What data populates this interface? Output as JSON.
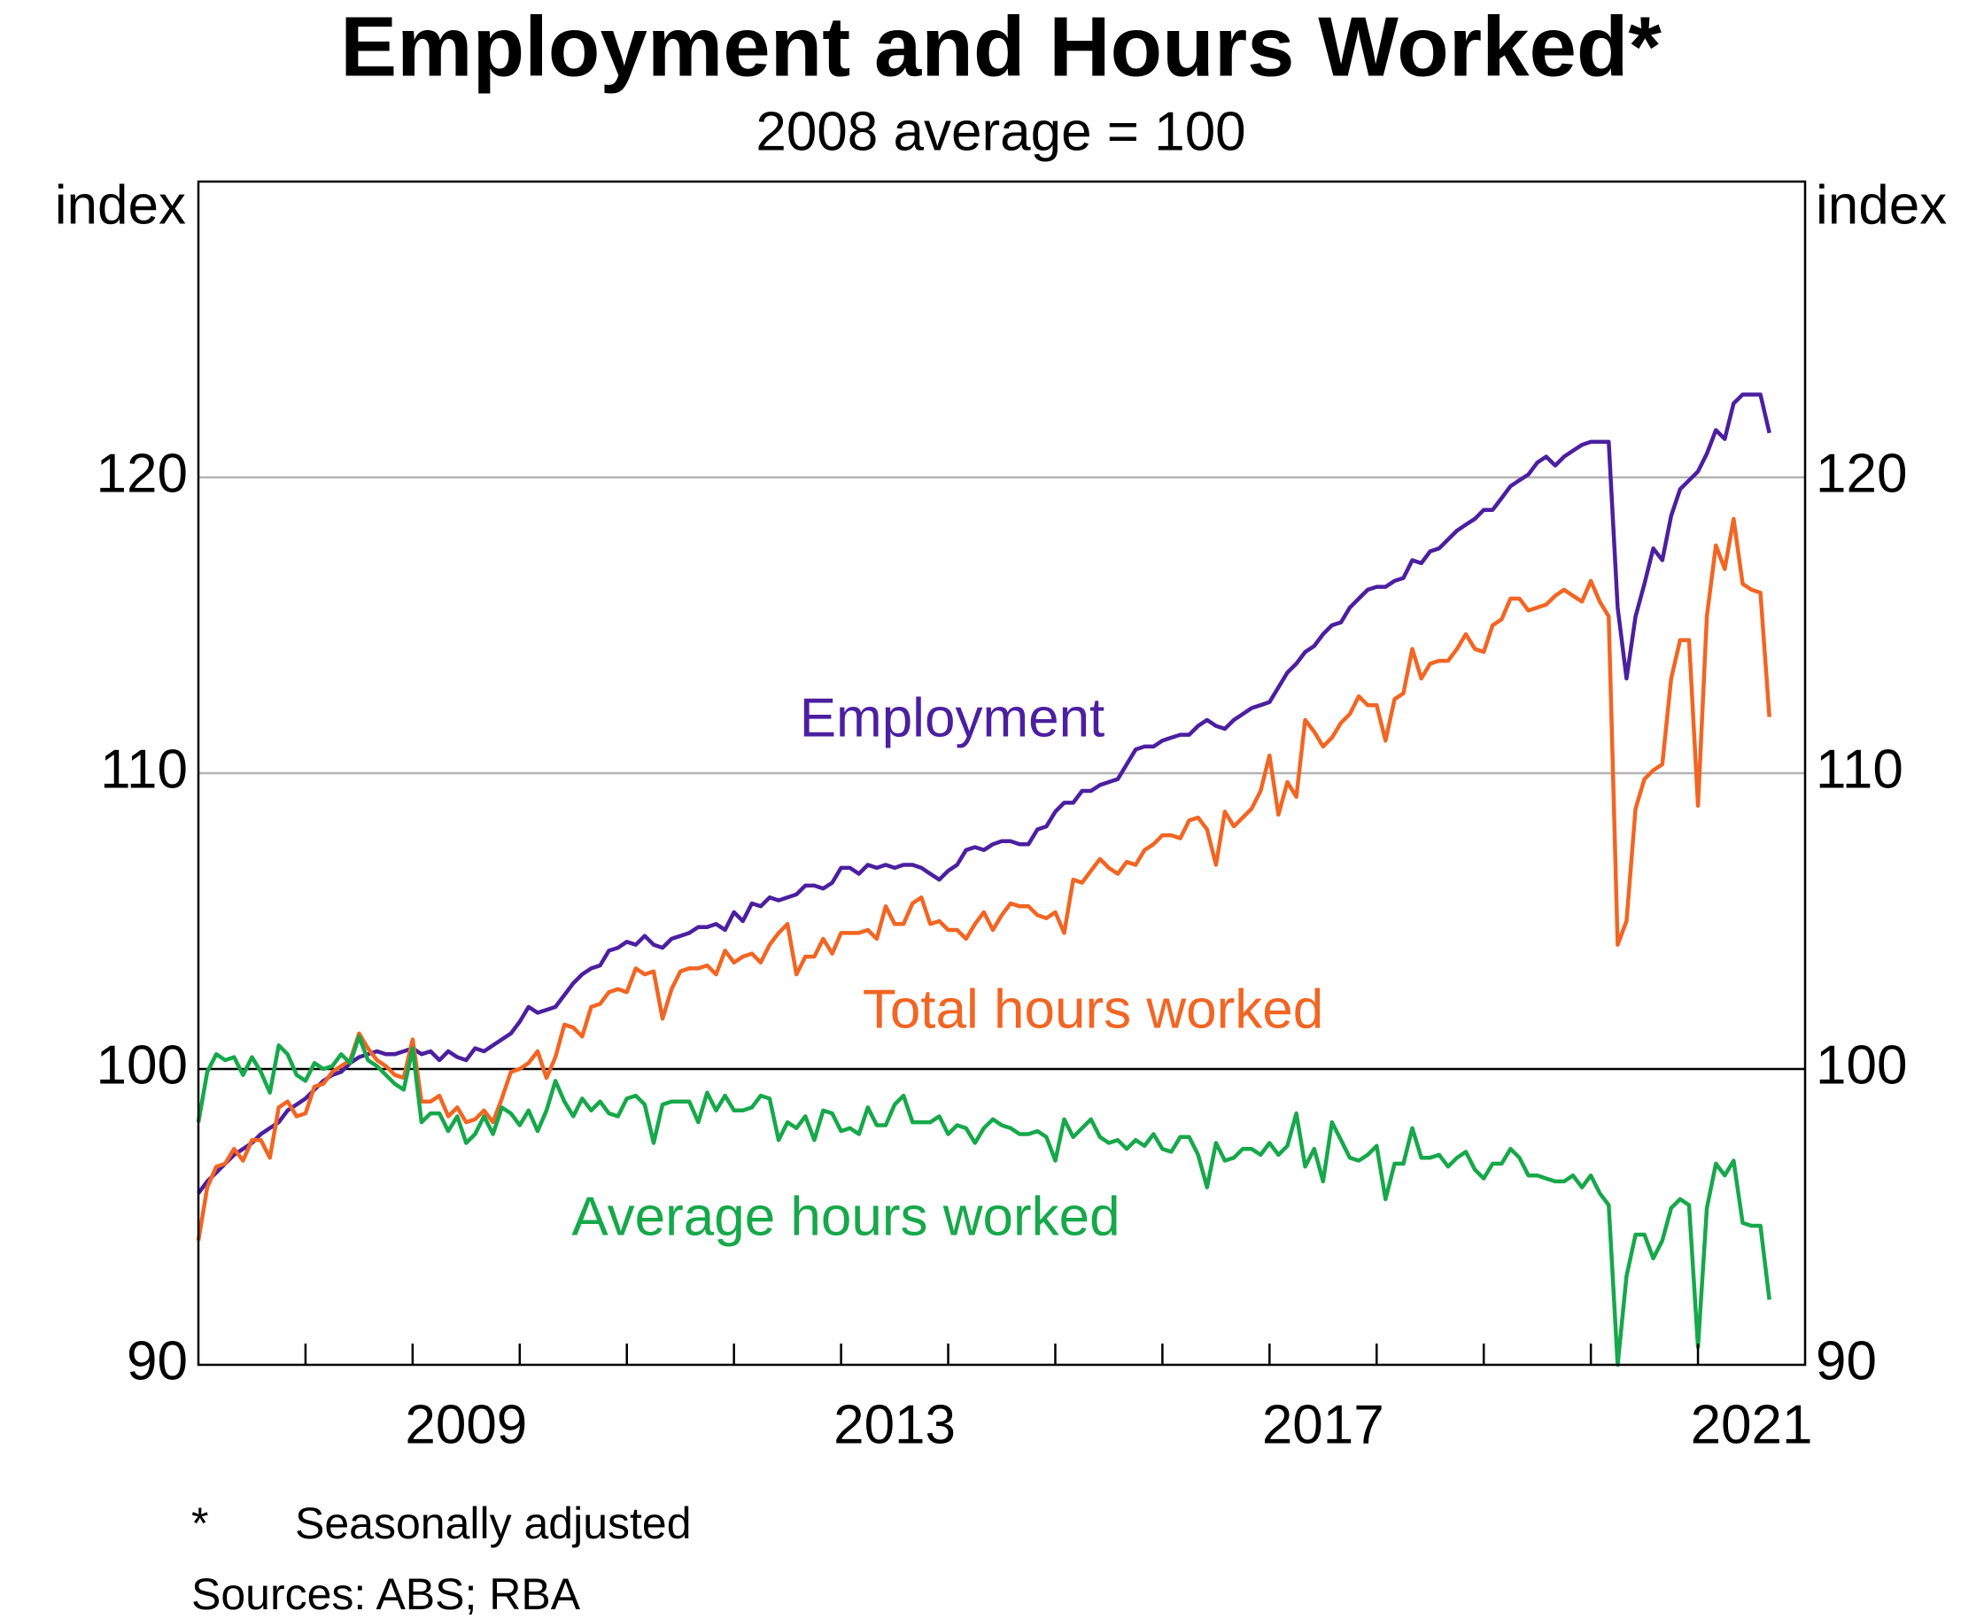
{
  "chart_data": {
    "type": "line",
    "title": "Employment and Hours Worked*",
    "subtitle": "2008 average = 100",
    "ylabel": "index",
    "y2label": "index",
    "footnote_symbol": "*",
    "footnote": "Seasonally adjusted",
    "sources": "Sources: ABS; RBA",
    "xlim": [
      2007,
      2022
    ],
    "xticks": [
      {
        "value": 2009.5,
        "label": "2009"
      },
      {
        "value": 2013.5,
        "label": "2013"
      },
      {
        "value": 2017.5,
        "label": "2017"
      },
      {
        "value": 2021.5,
        "label": "2021"
      }
    ],
    "xminorticks": [
      2008,
      2009,
      2010,
      2011,
      2012,
      2013,
      2014,
      2015,
      2016,
      2017,
      2018,
      2019,
      2020,
      2021
    ],
    "ylim": [
      90,
      130
    ],
    "yticks": [
      90,
      100,
      110,
      120
    ],
    "y2lim": [
      90,
      130
    ],
    "y2ticks": [
      90,
      100,
      110,
      120
    ],
    "grid": true,
    "reference_line": 100,
    "x": [
      2007,
      2007.083,
      2007.167,
      2007.25,
      2007.333,
      2007.417,
      2007.5,
      2007.583,
      2007.667,
      2007.75,
      2007.833,
      2007.917,
      2008,
      2008.083,
      2008.167,
      2008.25,
      2008.333,
      2008.417,
      2008.5,
      2008.583,
      2008.667,
      2008.75,
      2008.833,
      2008.917,
      2009,
      2009.083,
      2009.167,
      2009.25,
      2009.333,
      2009.417,
      2009.5,
      2009.583,
      2009.667,
      2009.75,
      2009.833,
      2009.917,
      2010,
      2010.083,
      2010.167,
      2010.25,
      2010.333,
      2010.417,
      2010.5,
      2010.583,
      2010.667,
      2010.75,
      2010.833,
      2010.917,
      2011,
      2011.083,
      2011.167,
      2011.25,
      2011.333,
      2011.417,
      2011.5,
      2011.583,
      2011.667,
      2011.75,
      2011.833,
      2011.917,
      2012,
      2012.083,
      2012.167,
      2012.25,
      2012.333,
      2012.417,
      2012.5,
      2012.583,
      2012.667,
      2012.75,
      2012.833,
      2012.917,
      2013,
      2013.083,
      2013.167,
      2013.25,
      2013.333,
      2013.417,
      2013.5,
      2013.583,
      2013.667,
      2013.75,
      2013.833,
      2013.917,
      2014,
      2014.083,
      2014.167,
      2014.25,
      2014.333,
      2014.417,
      2014.5,
      2014.583,
      2014.667,
      2014.75,
      2014.833,
      2014.917,
      2015,
      2015.083,
      2015.167,
      2015.25,
      2015.333,
      2015.417,
      2015.5,
      2015.583,
      2015.667,
      2015.75,
      2015.833,
      2015.917,
      2016,
      2016.083,
      2016.167,
      2016.25,
      2016.333,
      2016.417,
      2016.5,
      2016.583,
      2016.667,
      2016.75,
      2016.833,
      2016.917,
      2017,
      2017.083,
      2017.167,
      2017.25,
      2017.333,
      2017.417,
      2017.5,
      2017.583,
      2017.667,
      2017.75,
      2017.833,
      2017.917,
      2018,
      2018.083,
      2018.167,
      2018.25,
      2018.333,
      2018.417,
      2018.5,
      2018.583,
      2018.667,
      2018.75,
      2018.833,
      2018.917,
      2019,
      2019.083,
      2019.167,
      2019.25,
      2019.333,
      2019.417,
      2019.5,
      2019.583,
      2019.667,
      2019.75,
      2019.833,
      2019.917,
      2020,
      2020.083,
      2020.167,
      2020.25,
      2020.333,
      2020.417,
      2020.5,
      2020.583,
      2020.667,
      2020.75,
      2020.833,
      2020.917,
      2021,
      2021.083,
      2021.167,
      2021.25,
      2021.333,
      2021.417,
      2021.5,
      2021.583,
      2021.667
    ],
    "series": [
      {
        "name": "Employment",
        "color": "#4b1fa0",
        "values": [
          95.8,
          96.2,
          96.5,
          96.8,
          97.1,
          97.3,
          97.5,
          97.8,
          98.0,
          98.2,
          98.6,
          98.8,
          99.0,
          99.3,
          99.6,
          99.8,
          99.9,
          100.2,
          100.4,
          100.5,
          100.6,
          100.5,
          100.5,
          100.6,
          100.7,
          100.5,
          100.6,
          100.3,
          100.6,
          100.4,
          100.3,
          100.7,
          100.6,
          100.8,
          101.0,
          101.2,
          101.6,
          102.1,
          101.9,
          102.0,
          102.1,
          102.5,
          102.9,
          103.2,
          103.4,
          103.5,
          104.0,
          104.1,
          104.3,
          104.2,
          104.5,
          104.2,
          104.1,
          104.4,
          104.5,
          104.6,
          104.8,
          104.8,
          104.9,
          104.7,
          105.3,
          105.0,
          105.6,
          105.5,
          105.8,
          105.7,
          105.8,
          105.9,
          106.2,
          106.2,
          106.1,
          106.3,
          106.8,
          106.8,
          106.6,
          106.9,
          106.8,
          106.9,
          106.8,
          106.9,
          106.9,
          106.8,
          106.6,
          106.4,
          106.7,
          106.9,
          107.4,
          107.5,
          107.4,
          107.6,
          107.7,
          107.7,
          107.6,
          107.6,
          108.1,
          108.2,
          108.7,
          109.0,
          109.0,
          109.4,
          109.4,
          109.6,
          109.7,
          109.8,
          110.3,
          110.8,
          110.9,
          110.9,
          111.1,
          111.2,
          111.3,
          111.3,
          111.6,
          111.8,
          111.6,
          111.5,
          111.8,
          112.0,
          112.2,
          112.3,
          112.4,
          112.9,
          113.4,
          113.7,
          114.1,
          114.3,
          114.7,
          115.0,
          115.1,
          115.6,
          115.9,
          116.2,
          116.3,
          116.3,
          116.5,
          116.6,
          117.2,
          117.1,
          117.5,
          117.6,
          117.9,
          118.2,
          118.4,
          118.6,
          118.9,
          118.9,
          119.3,
          119.7,
          119.9,
          120.1,
          120.5,
          120.7,
          120.4,
          120.7,
          120.9,
          121.1,
          121.2,
          121.2,
          121.2,
          115.6,
          113.2,
          115.3,
          116.4,
          117.6,
          117.2,
          118.7,
          119.6,
          119.9,
          120.2,
          120.8,
          121.6,
          121.3,
          122.5,
          122.8,
          122.8,
          122.8,
          121.5
        ]
      },
      {
        "name": "Total hours worked",
        "color": "#f26522",
        "values": [
          94.2,
          96.0,
          96.7,
          96.8,
          97.3,
          96.9,
          97.6,
          97.6,
          97.0,
          98.7,
          98.9,
          98.4,
          98.5,
          99.4,
          99.5,
          99.9,
          100.1,
          100.3,
          101.2,
          100.7,
          100.3,
          100.1,
          99.8,
          99.7,
          101.0,
          98.9,
          98.9,
          99.1,
          98.4,
          98.7,
          98.2,
          98.3,
          98.6,
          98.2,
          99.0,
          99.9,
          100.0,
          100.2,
          100.6,
          99.7,
          100.4,
          101.5,
          101.4,
          101.1,
          102.1,
          102.2,
          102.6,
          102.7,
          102.6,
          103.4,
          103.2,
          103.3,
          101.7,
          102.7,
          103.3,
          103.4,
          103.4,
          103.5,
          103.2,
          104.0,
          103.6,
          103.8,
          103.9,
          103.6,
          104.2,
          104.6,
          104.9,
          103.2,
          103.8,
          103.8,
          104.4,
          103.9,
          104.6,
          104.6,
          104.6,
          104.7,
          104.4,
          105.5,
          104.9,
          104.9,
          105.6,
          105.8,
          104.9,
          105.0,
          104.7,
          104.7,
          104.4,
          104.9,
          105.3,
          104.7,
          105.2,
          105.6,
          105.5,
          105.5,
          105.2,
          105.1,
          105.3,
          104.6,
          106.4,
          106.3,
          106.7,
          107.1,
          106.8,
          106.6,
          107.0,
          106.9,
          107.4,
          107.6,
          107.9,
          107.9,
          107.8,
          108.4,
          108.5,
          108.1,
          106.9,
          108.7,
          108.2,
          108.5,
          108.8,
          109.4,
          110.6,
          108.6,
          109.7,
          109.2,
          111.8,
          111.4,
          110.9,
          111.2,
          111.7,
          112.0,
          112.6,
          112.3,
          112.3,
          111.1,
          112.5,
          112.7,
          114.2,
          113.2,
          113.7,
          113.8,
          113.8,
          114.2,
          114.7,
          114.2,
          114.1,
          115.0,
          115.2,
          115.9,
          115.9,
          115.5,
          115.6,
          115.7,
          116.0,
          116.2,
          116.0,
          115.8,
          116.5,
          115.8,
          115.3,
          104.2,
          105.0,
          108.8,
          109.8,
          110.1,
          110.3,
          113.2,
          114.5,
          114.5,
          108.9,
          115.3,
          117.7,
          116.9,
          118.6,
          116.4,
          116.2,
          116.1,
          111.9
        ]
      },
      {
        "name": "Average hours worked",
        "color": "#16a84a",
        "values": [
          98.2,
          99.9,
          100.5,
          100.3,
          100.4,
          99.8,
          100.4,
          99.9,
          99.2,
          100.8,
          100.5,
          99.8,
          99.6,
          100.2,
          100.0,
          100.1,
          100.5,
          100.2,
          101.1,
          100.3,
          100.1,
          99.8,
          99.5,
          99.3,
          100.7,
          98.2,
          98.5,
          98.5,
          97.9,
          98.4,
          97.5,
          97.8,
          98.4,
          97.8,
          98.7,
          98.5,
          98.1,
          98.6,
          97.9,
          98.6,
          99.6,
          98.9,
          98.4,
          99.0,
          98.6,
          98.9,
          98.5,
          98.4,
          99.0,
          99.1,
          98.8,
          97.5,
          98.8,
          98.9,
          98.9,
          98.9,
          98.2,
          99.2,
          98.6,
          99.1,
          98.6,
          98.6,
          98.7,
          99.1,
          99.0,
          97.6,
          98.2,
          98.0,
          98.4,
          97.6,
          98.6,
          98.5,
          97.9,
          98.0,
          97.8,
          98.7,
          98.1,
          98.1,
          98.8,
          99.1,
          98.2,
          98.2,
          98.2,
          98.4,
          97.8,
          98.1,
          98.0,
          97.5,
          98.0,
          98.3,
          98.1,
          98.0,
          97.8,
          97.8,
          97.9,
          97.7,
          96.9,
          98.3,
          97.7,
          98.0,
          98.3,
          97.7,
          97.5,
          97.6,
          97.3,
          97.6,
          97.4,
          97.8,
          97.3,
          97.2,
          97.7,
          97.7,
          97.1,
          96.0,
          97.5,
          96.9,
          97.0,
          97.3,
          97.3,
          97.1,
          97.5,
          97.1,
          97.4,
          98.5,
          96.7,
          97.3,
          96.2,
          98.2,
          97.6,
          97.0,
          96.9,
          97.1,
          97.4,
          95.6,
          96.8,
          96.8,
          98.0,
          97.0,
          97.0,
          97.1,
          96.7,
          97.0,
          97.2,
          96.6,
          96.3,
          96.8,
          96.8,
          97.3,
          97.0,
          96.4,
          96.4,
          96.3,
          96.2,
          96.2,
          96.4,
          96.0,
          96.4,
          95.8,
          95.4,
          90.0,
          93.0,
          94.4,
          94.4,
          93.6,
          94.2,
          95.3,
          95.6,
          95.4,
          90.6,
          95.3,
          96.8,
          96.4,
          96.9,
          94.8,
          94.7,
          94.7,
          92.2
        ]
      }
    ]
  }
}
